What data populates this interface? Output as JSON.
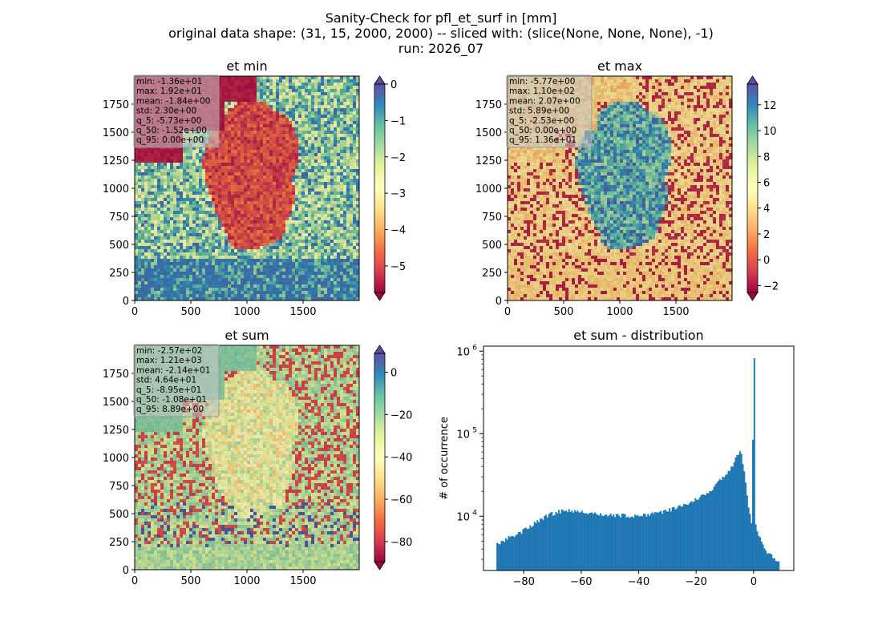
{
  "figure": {
    "title_lines": [
      "Sanity-Check for pfl_et_surf in [mm]",
      "original data shape: (31, 15, 2000, 2000) -- sliced with: (slice(None, None, None), -1)",
      "run: 2026_07"
    ]
  },
  "colors": {
    "spectral": [
      "#9e0142",
      "#d53e4f",
      "#f46d43",
      "#fdae61",
      "#fee08b",
      "#ffffbf",
      "#e6f598",
      "#abdda4",
      "#66c2a5",
      "#3288bd",
      "#5e4fa2"
    ],
    "bar_color": "#1f77b4"
  },
  "chart_data": [
    {
      "type": "heatmap",
      "name": "et-min",
      "title": "et min",
      "xlim": [
        0,
        2000
      ],
      "ylim": [
        0,
        2000
      ],
      "xticks": [
        0,
        500,
        1000,
        1500
      ],
      "yticks": [
        0,
        250,
        500,
        750,
        1000,
        1250,
        1500,
        1750
      ],
      "colorbar": {
        "vmin": -5.73,
        "vmax": 0.0,
        "ticks": [
          0,
          -1,
          -2,
          -3,
          -4,
          -5
        ],
        "extend": "both"
      },
      "stats": [
        "min: -1.36e+01",
        "max: 1.92e+01",
        "mean: -1.84e+00",
        "std: 2.30e+00",
        "q_5: -5.73e+00",
        "q_50: -1.52e+00",
        "q_95: 0.00e+00"
      ]
    },
    {
      "type": "heatmap",
      "name": "et-max",
      "title": "et max",
      "xlim": [
        0,
        2000
      ],
      "ylim": [
        0,
        2000
      ],
      "xticks": [
        0,
        500,
        1000,
        1500
      ],
      "yticks": [
        0,
        250,
        500,
        750,
        1000,
        1250,
        1500,
        1750
      ],
      "colorbar": {
        "vmin": -2.53,
        "vmax": 13.6,
        "ticks": [
          12,
          10,
          8,
          6,
          4,
          2,
          0,
          -2
        ],
        "extend": "both"
      },
      "stats": [
        "min: -5.77e+00",
        "max: 1.10e+02",
        "mean: 2.07e+00",
        "std: 5.89e+00",
        "q_5: -2.53e+00",
        "q_50: 0.00e+00",
        "q_95: 1.36e+01"
      ]
    },
    {
      "type": "heatmap",
      "name": "et-sum",
      "title": "et sum",
      "xlim": [
        0,
        2000
      ],
      "ylim": [
        0,
        2000
      ],
      "xticks": [
        0,
        500,
        1000,
        1500
      ],
      "yticks": [
        0,
        250,
        500,
        750,
        1000,
        1250,
        1500,
        1750
      ],
      "colorbar": {
        "vmin": -89.5,
        "vmax": 8.89,
        "ticks": [
          0,
          -20,
          -40,
          -60,
          -80
        ],
        "extend": "both"
      },
      "stats": [
        "min: -2.57e+02",
        "max: 1.21e+03",
        "mean: -2.14e+01",
        "std: 4.64e+01",
        "q_5: -8.95e+01",
        "q_50: -1.08e+01",
        "q_95: 8.89e+00"
      ]
    },
    {
      "type": "bar",
      "name": "et-sum-distribution",
      "title": "et sum - distribution",
      "ylabel": "# of occurrence",
      "yscale": "log",
      "xlim": [
        -94,
        14
      ],
      "ylim": [
        2200,
        1150000
      ],
      "xticks": [
        -80,
        -60,
        -40,
        -20,
        0
      ],
      "xtick_labels": [
        "−80",
        "−60",
        "−40",
        "−20",
        "0"
      ],
      "yticks": [
        10000,
        100000,
        1000000
      ],
      "ytick_labels": [
        "10",
        "10",
        "10"
      ],
      "ytick_exponents": [
        "4",
        "5",
        "6"
      ],
      "bin_width": 0.5,
      "series": [
        {
          "x": -89.0,
          "y": 4500
        },
        {
          "x": -87.0,
          "y": 5000
        },
        {
          "x": -85.0,
          "y": 5600
        },
        {
          "x": -83.0,
          "y": 6000
        },
        {
          "x": -81.0,
          "y": 6500
        },
        {
          "x": -79.0,
          "y": 7200
        },
        {
          "x": -77.0,
          "y": 8000
        },
        {
          "x": -75.0,
          "y": 8800
        },
        {
          "x": -73.0,
          "y": 9600
        },
        {
          "x": -71.0,
          "y": 10500
        },
        {
          "x": -69.0,
          "y": 11000
        },
        {
          "x": -67.0,
          "y": 11500
        },
        {
          "x": -65.0,
          "y": 11800
        },
        {
          "x": -63.0,
          "y": 11600
        },
        {
          "x": -61.0,
          "y": 11400
        },
        {
          "x": -59.0,
          "y": 11200
        },
        {
          "x": -57.0,
          "y": 11000
        },
        {
          "x": -55.0,
          "y": 10800
        },
        {
          "x": -53.0,
          "y": 10600
        },
        {
          "x": -51.0,
          "y": 10400
        },
        {
          "x": -49.0,
          "y": 10300
        },
        {
          "x": -47.0,
          "y": 10200
        },
        {
          "x": -45.0,
          "y": 10100
        },
        {
          "x": -43.0,
          "y": 10100
        },
        {
          "x": -41.0,
          "y": 10100
        },
        {
          "x": -39.0,
          "y": 10200
        },
        {
          "x": -37.0,
          "y": 10400
        },
        {
          "x": -35.0,
          "y": 10700
        },
        {
          "x": -33.0,
          "y": 11000
        },
        {
          "x": -31.0,
          "y": 11400
        },
        {
          "x": -29.0,
          "y": 12000
        },
        {
          "x": -27.0,
          "y": 12700
        },
        {
          "x": -25.0,
          "y": 13500
        },
        {
          "x": -23.0,
          "y": 14500
        },
        {
          "x": -21.0,
          "y": 15500
        },
        {
          "x": -19.0,
          "y": 16800
        },
        {
          "x": -17.0,
          "y": 18500
        },
        {
          "x": -15.0,
          "y": 21000
        },
        {
          "x": -13.0,
          "y": 24500
        },
        {
          "x": -11.0,
          "y": 29000
        },
        {
          "x": -9.0,
          "y": 35000
        },
        {
          "x": -7.0,
          "y": 44000
        },
        {
          "x": -5.0,
          "y": 65000
        },
        {
          "x": -4.0,
          "y": 45000
        },
        {
          "x": -3.0,
          "y": 25000
        },
        {
          "x": -2.0,
          "y": 13000
        },
        {
          "x": -1.0,
          "y": 8500
        },
        {
          "x": 0.0,
          "y": 820000
        },
        {
          "x": 0.5,
          "y": 8000
        },
        {
          "x": 1.5,
          "y": 5800
        },
        {
          "x": 3.0,
          "y": 4500
        },
        {
          "x": 4.5,
          "y": 3700
        },
        {
          "x": 6.0,
          "y": 3300
        },
        {
          "x": 7.5,
          "y": 3000
        },
        {
          "x": 8.5,
          "y": 2900
        }
      ]
    }
  ]
}
